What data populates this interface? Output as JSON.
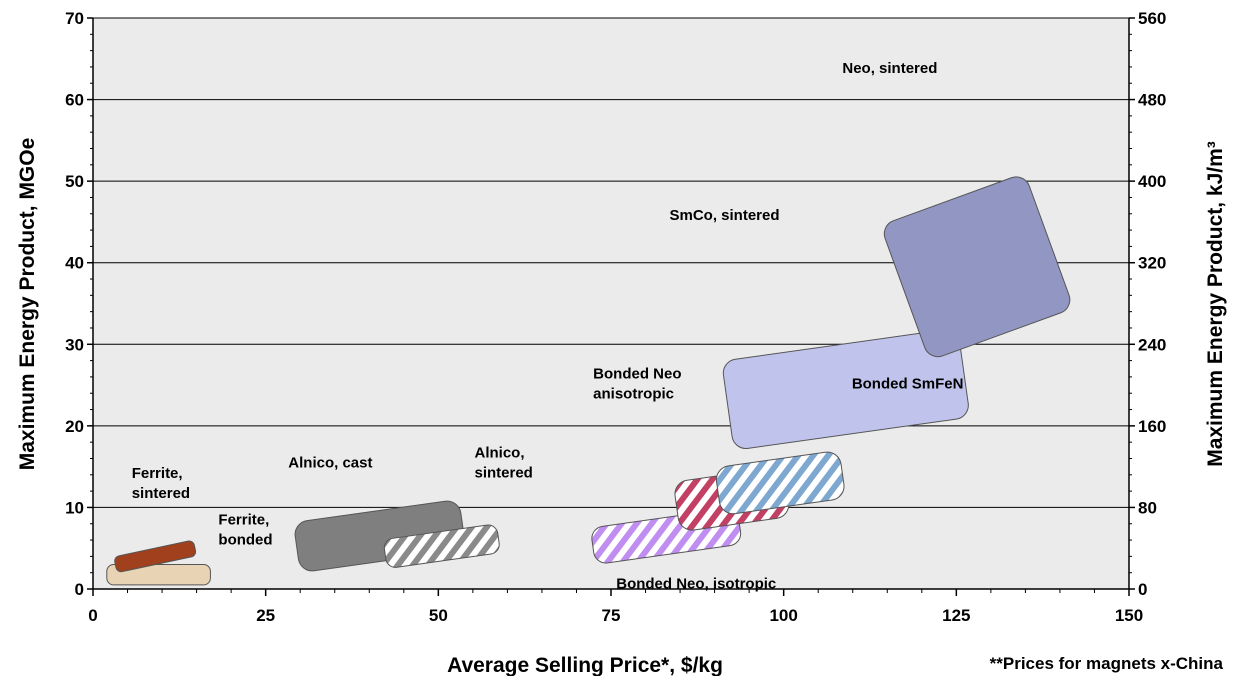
{
  "chart_data": {
    "type": "scatter",
    "xlabel": "Average Selling Price*, $/kg",
    "ylabel": "Maximum Energy Product, MGOe",
    "y2label": "Maximum Energy Product, kJ/m³",
    "xlim": [
      0,
      150
    ],
    "ylim": [
      0,
      70
    ],
    "y2lim": [
      0,
      560
    ],
    "x_ticks": [
      "0",
      "25",
      "50",
      "75",
      "100",
      "125",
      "150"
    ],
    "y_ticks": [
      "0",
      "10",
      "20",
      "30",
      "40",
      "50",
      "60",
      "70"
    ],
    "y2_ticks": [
      "0",
      "80",
      "160",
      "240",
      "320",
      "400",
      "480",
      "560"
    ],
    "grid": "horizontal",
    "footnote": "**Prices for magnets x-China",
    "series": [
      {
        "name": "Ferrite, bonded",
        "label_lines": [
          "Ferrite,",
          "bonded"
        ],
        "x_range": [
          2,
          17
        ],
        "y_range": [
          0.5,
          3
        ],
        "color": "#e8d4b4",
        "pattern": "solid"
      },
      {
        "name": "Ferrite, sintered",
        "label_lines": [
          "Ferrite,",
          "sintered"
        ],
        "x_range": [
          3,
          15
        ],
        "y_range": [
          2,
          6
        ],
        "color": "#a0401c",
        "pattern": "solid"
      },
      {
        "name": "Alnico, cast",
        "label_lines": [
          "Alnico, cast"
        ],
        "x_range": [
          29,
          54
        ],
        "y_range": [
          2,
          11
        ],
        "color": "#7f7f7f",
        "pattern": "solid"
      },
      {
        "name": "Alnico, sintered",
        "label_lines": [
          "Alnico,",
          "sintered"
        ],
        "x_range": [
          42,
          59
        ],
        "y_range": [
          2.5,
          8
        ],
        "color": "#8a8a8a",
        "pattern": "hatched"
      },
      {
        "name": "Bonded Neo, isotropic",
        "label_lines": [
          "Bonded Neo, isotropic"
        ],
        "x_range": [
          72,
          94
        ],
        "y_range": [
          3,
          10
        ],
        "color": "#c08ef0",
        "pattern": "hatched"
      },
      {
        "name": "Bonded Neo anisotropic",
        "label_lines": [
          "Bonded Neo",
          "anisotropic"
        ],
        "x_range": [
          84,
          101
        ],
        "y_range": [
          7,
          15
        ],
        "color": "#c24064",
        "pattern": "hatched"
      },
      {
        "name": "Bonded SmFeN",
        "label_lines": [
          "Bonded SmFeN"
        ],
        "x_range": [
          90,
          109
        ],
        "y_range": [
          9,
          17
        ],
        "color": "#7ea8d0",
        "pattern": "hatched"
      },
      {
        "name": "SmCo, sintered",
        "label_lines": [
          "SmCo, sintered"
        ],
        "x_range": [
          91,
          127
        ],
        "y_range": [
          17,
          32
        ],
        "color": "#c0c4ec",
        "pattern": "solid"
      },
      {
        "name": "Neo, sintered",
        "label_lines": [
          "Neo, sintered"
        ],
        "x_range": [
          114,
          142
        ],
        "y_range": [
          28,
          51
        ],
        "color": "#9196c2",
        "pattern": "solid"
      }
    ]
  }
}
